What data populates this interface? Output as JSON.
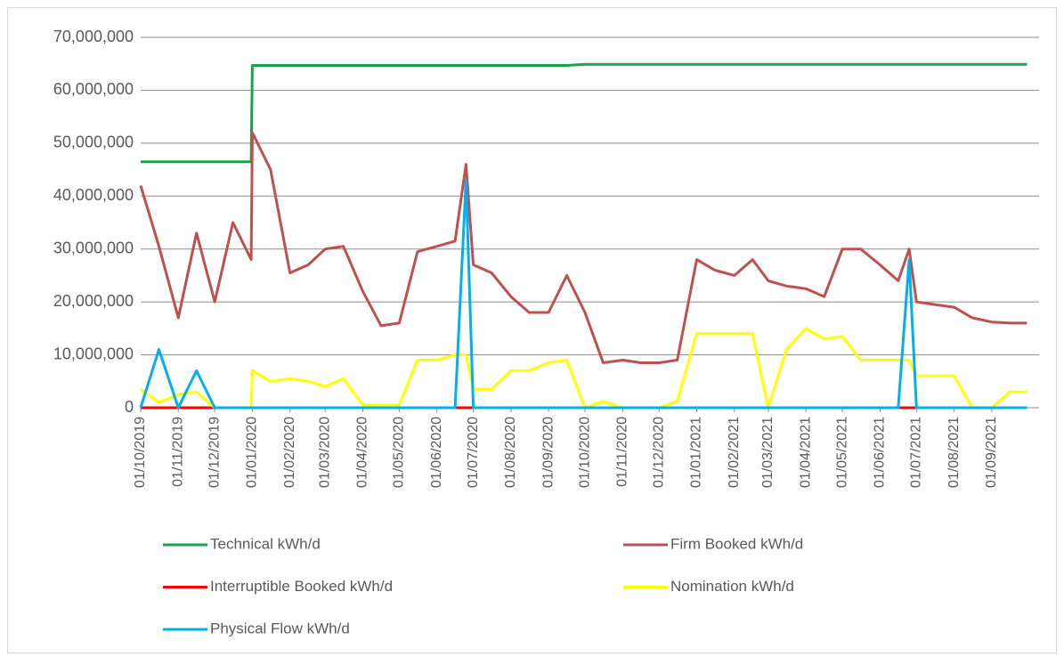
{
  "chart_data": {
    "type": "line",
    "x": [
      "01/10/2019",
      "16/10/2019",
      "01/11/2019",
      "16/11/2019",
      "01/12/2019",
      "16/12/2019",
      "31/12/2019",
      "01/01/2020",
      "16/01/2020",
      "01/02/2020",
      "16/02/2020",
      "01/03/2020",
      "16/03/2020",
      "01/04/2020",
      "16/04/2020",
      "01/05/2020",
      "16/05/2020",
      "01/06/2020",
      "16/06/2020",
      "25/06/2020",
      "01/07/2020",
      "16/07/2020",
      "01/08/2020",
      "16/08/2020",
      "01/09/2020",
      "16/09/2020",
      "01/10/2020",
      "16/10/2020",
      "01/11/2020",
      "16/11/2020",
      "01/12/2020",
      "16/12/2020",
      "01/01/2021",
      "16/01/2021",
      "01/02/2021",
      "16/02/2021",
      "01/03/2021",
      "16/03/2021",
      "01/04/2021",
      "16/04/2021",
      "01/05/2021",
      "16/05/2021",
      "01/06/2021",
      "16/06/2021",
      "25/06/2021",
      "01/07/2021",
      "16/07/2021",
      "01/08/2021",
      "16/08/2021",
      "01/09/2021",
      "16/09/2021",
      "30/09/2021"
    ],
    "series": [
      {
        "name": "Technical kWh/d",
        "color": "#1aa34a",
        "values": [
          46500000,
          46500000,
          46500000,
          46500000,
          46500000,
          46500000,
          46500000,
          64700000,
          64700000,
          64700000,
          64700000,
          64700000,
          64700000,
          64700000,
          64700000,
          64700000,
          64700000,
          64700000,
          64700000,
          64700000,
          64700000,
          64700000,
          64700000,
          64700000,
          64700000,
          64700000,
          64900000,
          64900000,
          64900000,
          64900000,
          64900000,
          64900000,
          64900000,
          64900000,
          64900000,
          64900000,
          64900000,
          64900000,
          64900000,
          64900000,
          64900000,
          64900000,
          64900000,
          64900000,
          64900000,
          64900000,
          64900000,
          64900000,
          64900000,
          64900000,
          64900000,
          64900000
        ]
      },
      {
        "name": "Firm Booked kWh/d",
        "color": "#c0504d",
        "values": [
          42000000,
          30500000,
          17000000,
          33000000,
          20000000,
          35000000,
          28000000,
          52000000,
          45000000,
          25500000,
          27000000,
          30000000,
          30500000,
          22000000,
          15500000,
          16000000,
          29500000,
          30500000,
          31500000,
          46000000,
          27000000,
          25500000,
          21000000,
          18000000,
          18000000,
          25000000,
          18000000,
          8500000,
          9000000,
          8500000,
          8500000,
          9000000,
          28000000,
          26000000,
          25000000,
          28000000,
          24000000,
          23000000,
          22500000,
          21000000,
          30000000,
          30000000,
          27000000,
          24000000,
          30000000,
          20000000,
          19500000,
          19000000,
          17000000,
          16200000,
          16000000,
          16000000
        ]
      },
      {
        "name": "Interruptible Booked kWh/d",
        "color": "#ff0000",
        "values": [
          0,
          0,
          0,
          0,
          0,
          0,
          0,
          0,
          0,
          0,
          0,
          0,
          0,
          0,
          0,
          0,
          0,
          0,
          0,
          0,
          0,
          0,
          0,
          0,
          0,
          0,
          0,
          0,
          0,
          0,
          0,
          0,
          0,
          0,
          0,
          0,
          0,
          0,
          0,
          0,
          0,
          0,
          0,
          0,
          0,
          0,
          0,
          0,
          0,
          0,
          0,
          0
        ]
      },
      {
        "name": "Nomination kWh/d",
        "color": "#ffff00",
        "values": [
          3500000,
          1000000,
          2500000,
          3000000,
          0,
          0,
          0,
          7000000,
          5000000,
          5500000,
          5000000,
          4000000,
          5500000,
          500000,
          500000,
          500000,
          9000000,
          9000000,
          10000000,
          10000000,
          3500000,
          3500000,
          7000000,
          7000000,
          8500000,
          9000000,
          0,
          1200000,
          0,
          0,
          0,
          1200000,
          14000000,
          14000000,
          14000000,
          14000000,
          0,
          11000000,
          15000000,
          13000000,
          13500000,
          9000000,
          9000000,
          9000000,
          9000000,
          6000000,
          6000000,
          6000000,
          0,
          0,
          3000000,
          3000000
        ]
      },
      {
        "name": "Physical Flow kWh/d",
        "color": "#00b0f0",
        "values": [
          0,
          11000000,
          0,
          7000000,
          0,
          0,
          0,
          0,
          0,
          0,
          0,
          0,
          0,
          0,
          0,
          0,
          0,
          0,
          0,
          43000000,
          0,
          0,
          0,
          0,
          0,
          0,
          0,
          0,
          0,
          0,
          0,
          0,
          0,
          0,
          0,
          0,
          0,
          0,
          0,
          0,
          0,
          0,
          0,
          0,
          28000000,
          0,
          0,
          0,
          0,
          0,
          0,
          0
        ]
      }
    ],
    "xlim": [
      "01/10/2019",
      "10/10/2021"
    ],
    "xticks": [
      "01/10/2019",
      "01/11/2019",
      "01/12/2019",
      "01/01/2020",
      "01/02/2020",
      "01/03/2020",
      "01/04/2020",
      "01/05/2020",
      "01/06/2020",
      "01/07/2020",
      "01/08/2020",
      "01/09/2020",
      "01/10/2020",
      "01/11/2020",
      "01/12/2020",
      "01/01/2021",
      "01/02/2021",
      "01/03/2021",
      "01/04/2021",
      "01/05/2021",
      "01/06/2021",
      "01/07/2021",
      "01/08/2021",
      "01/09/2021"
    ],
    "ylim": [
      0,
      70000000
    ],
    "yticks": [
      0,
      {
        "value": 10000000,
        "label": "10,000,000"
      },
      {
        "value": 20000000,
        "label": "20,000,000"
      },
      {
        "value": 30000000,
        "label": "30,000,000"
      },
      {
        "value": 40000000,
        "label": "40,000,000"
      },
      {
        "value": 50000000,
        "label": "50,000,000"
      },
      {
        "value": 60000000,
        "label": "60,000,000"
      },
      {
        "value": 70000000,
        "label": "70,000,000"
      }
    ],
    "grid": true,
    "legend": "bottom"
  }
}
